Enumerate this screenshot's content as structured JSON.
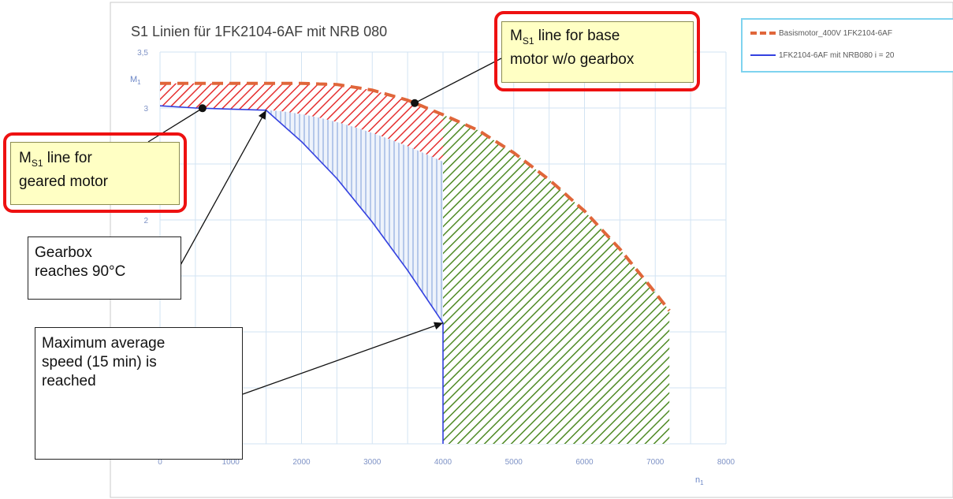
{
  "chart_data": {
    "type": "area",
    "title": "S1 Linien für 1FK2104-6AF mit NRB 080",
    "xlabel": "n",
    "xlabel_sub": "1",
    "ylabel": "M",
    "ylabel_sub": "1",
    "xlim": [
      0,
      8000
    ],
    "ylim": [
      0,
      3.5
    ],
    "x_ticks": [
      "0",
      "1000",
      "2000",
      "3000",
      "4000",
      "5000",
      "6000",
      "7000",
      "8000"
    ],
    "y_ticks": [
      {
        "value": 3.5,
        "label": "3,5"
      },
      {
        "value": 3,
        "label": "3"
      },
      {
        "value": 2,
        "label": "2"
      }
    ],
    "grid": true,
    "legend_position": "top-right",
    "series": [
      {
        "name": "Basismotor_400V 1FK2104-6AF",
        "style": "dashed",
        "color": "#e0663a",
        "x": [
          0,
          1000,
          2000,
          2500,
          3000,
          3500,
          4000,
          4500,
          5000,
          5500,
          6000,
          6500,
          7000,
          7200
        ],
        "y": [
          3.22,
          3.22,
          3.22,
          3.21,
          3.16,
          3.07,
          2.94,
          2.8,
          2.6,
          2.36,
          2.08,
          1.74,
          1.35,
          1.19
        ]
      },
      {
        "name": "1FK2104-6AF mit NRB080 i = 20",
        "style": "solid",
        "color": "#3340e0",
        "x": [
          0,
          500,
          1000,
          1500,
          2000,
          2500,
          3000,
          3500,
          4000,
          4000
        ],
        "y": [
          3.02,
          3.0,
          2.99,
          2.98,
          2.7,
          2.37,
          1.98,
          1.55,
          1.08,
          0.0
        ]
      }
    ],
    "hatched_regions": [
      {
        "name": "red",
        "color": "#e53030"
      },
      {
        "name": "blue",
        "color": "#8aa8dd"
      },
      {
        "name": "green",
        "color": "#4f8a25"
      }
    ]
  },
  "annotations": {
    "base_motor": {
      "line1": "M",
      "sub": "S1",
      "line1_rest": " line for base",
      "line2": "motor w/o gearbox"
    },
    "geared_motor": {
      "line1": "M",
      "sub": "S1",
      "line1_rest": " line for",
      "line2": "geared motor"
    },
    "gearbox_temp": {
      "line1": "Gearbox",
      "line2": "reaches 90°C"
    },
    "max_speed": {
      "line1": "Maximum average",
      "line2": "speed (15 min) is",
      "line3": "reached"
    }
  }
}
